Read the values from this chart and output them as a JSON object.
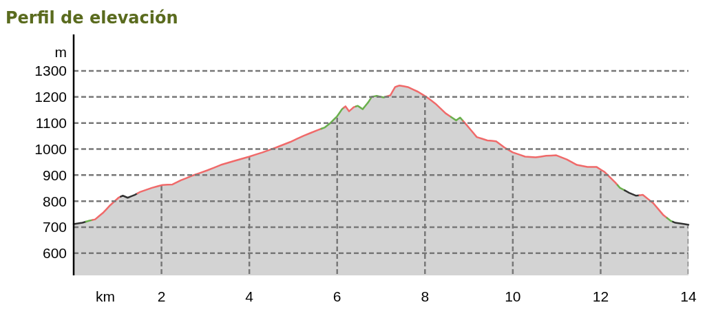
{
  "chart_data": {
    "type": "area",
    "title": "Perfil de elevación",
    "xlabel": "km",
    "ylabel": "m",
    "xlim": [
      0,
      14
    ],
    "xticks": [
      2,
      4,
      6,
      8,
      10,
      12,
      14
    ],
    "ylim": [
      515,
      1440
    ],
    "yticks": [
      600,
      700,
      800,
      900,
      1000,
      1100,
      1200,
      1300
    ],
    "grid": true,
    "series": [
      {
        "color": "#d3d3d3",
        "x": [
          0,
          0.2,
          0.36,
          0.49,
          0.68,
          0.83,
          1.02,
          1.12,
          1.23,
          1.39,
          1.51,
          1.78,
          2.02,
          2.25,
          2.44,
          2.72,
          3.04,
          3.35,
          3.67,
          4.0,
          4.3,
          4.61,
          4.93,
          5.24,
          5.56,
          5.72,
          5.84,
          6.0,
          6.11,
          6.19,
          6.27,
          6.38,
          6.47,
          6.58,
          6.71,
          6.79,
          6.9,
          7.06,
          7.21,
          7.32,
          7.42,
          7.61,
          7.84,
          8.05,
          8.24,
          8.47,
          8.71,
          8.8,
          8.94,
          9.18,
          9.42,
          9.62,
          9.81,
          10.0,
          10.28,
          10.52,
          10.76,
          10.99,
          11.23,
          11.46,
          11.7,
          11.91,
          12.09,
          12.33,
          12.44,
          12.65,
          12.8,
          12.96,
          13.2,
          13.43,
          13.59,
          13.7,
          13.91,
          14.0
        ],
        "values": [
          712,
          717,
          725,
          730,
          757,
          784,
          813,
          821,
          813,
          824,
          835,
          851,
          862,
          864,
          880,
          899,
          918,
          939,
          955,
          971,
          987,
          1006,
          1027,
          1051,
          1073,
          1083,
          1099,
          1126,
          1153,
          1164,
          1145,
          1161,
          1166,
          1153,
          1180,
          1201,
          1204,
          1198,
          1206,
          1238,
          1244,
          1238,
          1220,
          1198,
          1174,
          1137,
          1110,
          1121,
          1094,
          1046,
          1033,
          1030,
          1006,
          987,
          971,
          968,
          974,
          976,
          960,
          939,
          931,
          931,
          912,
          872,
          851,
          832,
          821,
          824,
          792,
          746,
          725,
          717,
          712,
          709
        ],
        "colors": [
          "#333333",
          "#333333",
          "#6ab04c",
          "#f06a6a",
          "#f06a6a",
          "#f06a6a",
          "#f06a6a",
          "#333333",
          "#333333",
          "#333333",
          "#f06a6a",
          "#f06a6a",
          "#f06a6a",
          "#f06a6a",
          "#f06a6a",
          "#f06a6a",
          "#f06a6a",
          "#f06a6a",
          "#f06a6a",
          "#f06a6a",
          "#f06a6a",
          "#f06a6a",
          "#f06a6a",
          "#f06a6a",
          "#f06a6a",
          "#6ab04c",
          "#6ab04c",
          "#6ab04c",
          "#6ab04c",
          "#f06a6a",
          "#f06a6a",
          "#f06a6a",
          "#6ab04c",
          "#6ab04c",
          "#6ab04c",
          "#6ab04c",
          "#6ab04c",
          "#6ab04c",
          "#f06a6a",
          "#f06a6a",
          "#f06a6a",
          "#f06a6a",
          "#f06a6a",
          "#f06a6a",
          "#f06a6a",
          "#f06a6a",
          "#6ab04c",
          "#6ab04c",
          "#f06a6a",
          "#f06a6a",
          "#f06a6a",
          "#f06a6a",
          "#f06a6a",
          "#f06a6a",
          "#f06a6a",
          "#f06a6a",
          "#f06a6a",
          "#f06a6a",
          "#f06a6a",
          "#f06a6a",
          "#f06a6a",
          "#f06a6a",
          "#f06a6a",
          "#f06a6a",
          "#6ab04c",
          "#333333",
          "#333333",
          "#f06a6a",
          "#f06a6a",
          "#f06a6a",
          "#6ab04c",
          "#333333",
          "#333333",
          "#333333"
        ]
      }
    ]
  }
}
